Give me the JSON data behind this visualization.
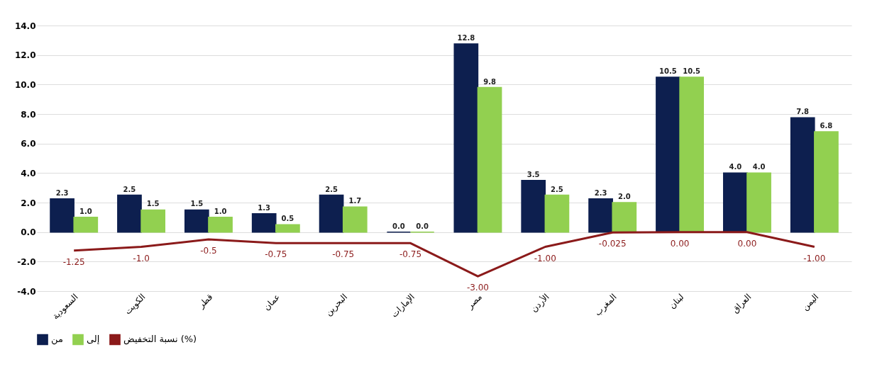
{
  "chart_data": {
    "type": "bar",
    "categories": [
      "السعودية",
      "الكويت",
      "قطر",
      "عمان",
      "البحرين",
      "الإمارات",
      "مصر",
      "الأردن",
      "المغرب",
      "لبنان",
      "العراق",
      "اليمن"
    ],
    "series": [
      {
        "name": "من",
        "color": "#0d1f4f",
        "values": [
          2.25,
          2.5,
          1.5,
          1.25,
          2.5,
          0,
          12.75,
          3.5,
          2.25,
          10.5,
          4.0,
          7.75
        ],
        "value_labels": [
          "2.3",
          "2.5",
          "1.5",
          "1.3",
          "2.5",
          "0.0",
          "12.8",
          "3.5",
          "2.3",
          "10.5",
          "4.0",
          "7.8"
        ]
      },
      {
        "name": "إلى",
        "color": "#92d050",
        "values": [
          1.0,
          1.5,
          1.0,
          0.5,
          1.7,
          0,
          9.8,
          2.5,
          2.0,
          10.5,
          4.0,
          6.8
        ],
        "value_labels": [
          "1.0",
          "1.5",
          "1.0",
          "0.5",
          "1.7",
          "0.0",
          "9.8",
          "2.5",
          "2.0",
          "10.5",
          "4.0",
          "6.8"
        ]
      },
      {
        "name": "نسبة التخفيض (%)",
        "type": "line",
        "color": "#8b1a1a",
        "values": [
          -1.25,
          -1.0,
          -0.5,
          -0.75,
          -0.75,
          -0.75,
          -3.0,
          -1.0,
          -0.025,
          0,
          0,
          -1.0
        ],
        "value_labels": [
          "-1.25",
          "-1.0",
          "-0.5",
          "-0.75",
          "-0.75",
          "-0.75",
          "-3.00",
          "-1.00",
          "-0.025",
          "0.00",
          "0.00",
          "-1.00"
        ]
      }
    ],
    "ylim": [
      -4,
      14
    ],
    "yticks": [
      {
        "value": -4,
        "label": "-4.0"
      },
      {
        "value": -2,
        "label": "-2.0"
      },
      {
        "value": 0,
        "label": "0.0"
      },
      {
        "value": 2,
        "label": "2.0"
      },
      {
        "value": 4,
        "label": "4.0"
      },
      {
        "value": 6,
        "label": "6.0"
      },
      {
        "value": 8,
        "label": "8.0"
      },
      {
        "value": 10,
        "label": "10.0"
      },
      {
        "value": 12,
        "label": "12.0"
      },
      {
        "value": 14,
        "label": "14.0"
      }
    ],
    "grid": "y",
    "legend": "bottom"
  }
}
